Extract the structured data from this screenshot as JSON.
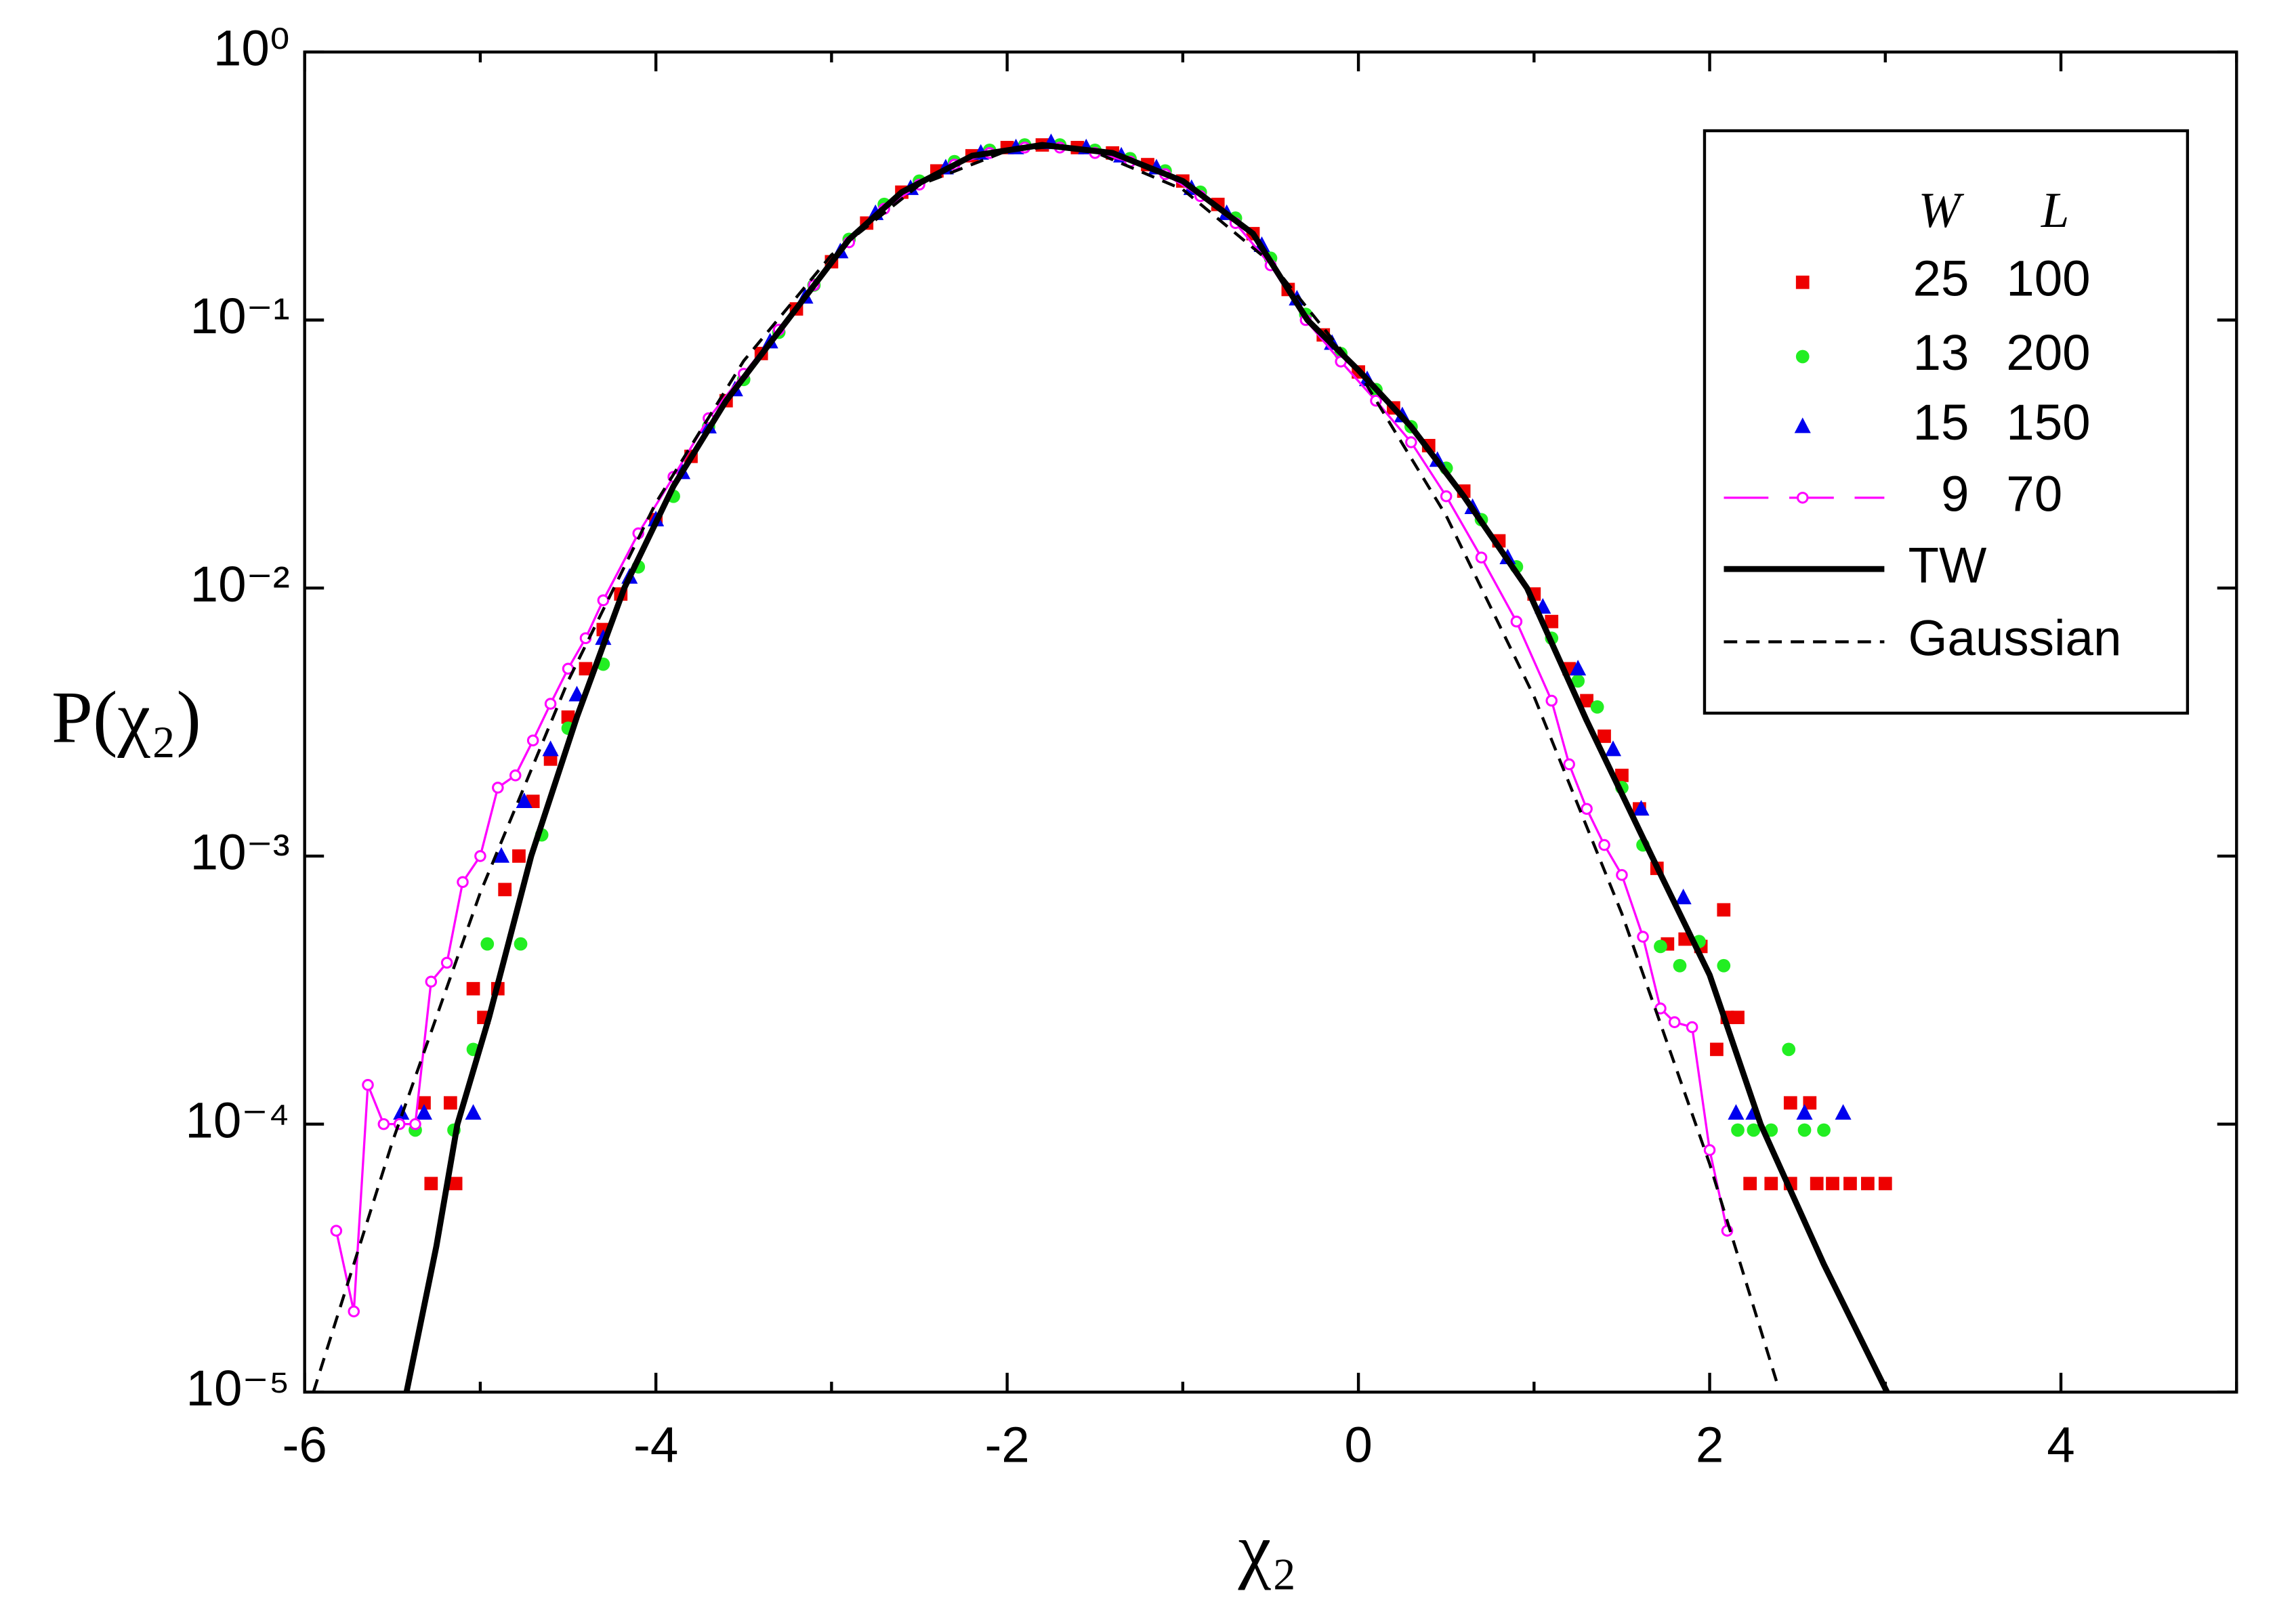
{
  "chart_data": {
    "type": "scatter",
    "x_label": "χ₂",
    "y_label": "P(χ₂)",
    "xlim": [
      -6,
      5
    ],
    "xticks": [
      -6,
      -4,
      -2,
      0,
      2,
      4
    ],
    "xminor": [
      -5,
      -3,
      -1,
      1,
      3,
      5
    ],
    "ylim": [
      1e-05,
      1
    ],
    "ylog": true,
    "yticks": [
      {
        "value": 1e-05,
        "label": "10⁻⁵"
      },
      {
        "value": 0.0001,
        "label": "10⁻⁴"
      },
      {
        "value": 0.001,
        "label": "10⁻³"
      },
      {
        "value": 0.01,
        "label": "10⁻²"
      },
      {
        "value": 0.1,
        "label": "10⁻¹"
      },
      {
        "value": 1,
        "label": "10⁰"
      }
    ],
    "legend_position": "upper right",
    "legend_header": [
      "W",
      "L"
    ],
    "series": [
      {
        "legend_label": [
          "25",
          "100"
        ],
        "color": "#ee0000",
        "marker": "square",
        "x": [
          -5.32,
          -5.28,
          -5.17,
          -5.14,
          -5.04,
          -4.98,
          -4.9,
          -4.86,
          -4.78,
          -4.7,
          -4.6,
          -4.5,
          -4.4,
          -4.3,
          -4.2,
          -4.0,
          -3.8,
          -3.6,
          -3.4,
          -3.2,
          -3.0,
          -2.8,
          -2.6,
          -2.4,
          -2.2,
          -2.0,
          -1.8,
          -1.6,
          -1.4,
          -1.2,
          -1.0,
          -0.8,
          -0.6,
          -0.4,
          -0.2,
          0.0,
          0.2,
          0.4,
          0.6,
          0.8,
          1.0,
          1.1,
          1.2,
          1.3,
          1.4,
          1.5,
          1.6,
          1.7,
          1.76,
          1.86,
          1.95,
          2.04,
          2.08,
          2.1,
          2.16,
          2.23,
          2.35,
          2.46,
          2.46,
          2.57,
          2.61,
          2.7,
          2.8,
          2.9,
          3.0
        ],
        "values": [
          0.00012,
          6e-05,
          0.00012,
          6e-05,
          0.00032,
          0.00025,
          0.00032,
          0.00075,
          0.001,
          0.0016,
          0.0023,
          0.0033,
          0.005,
          0.007,
          0.0095,
          0.018,
          0.031,
          0.05,
          0.075,
          0.11,
          0.165,
          0.23,
          0.3,
          0.36,
          0.41,
          0.44,
          0.45,
          0.44,
          0.42,
          0.38,
          0.33,
          0.27,
          0.21,
          0.13,
          0.088,
          0.064,
          0.047,
          0.034,
          0.023,
          0.015,
          0.0095,
          0.0075,
          0.005,
          0.0038,
          0.0028,
          0.002,
          0.0015,
          0.0009,
          0.00047,
          0.00049,
          0.00046,
          0.00019,
          0.00063,
          0.00025,
          0.00025,
          6e-05,
          6e-05,
          0.00012,
          6e-05,
          0.00012,
          6e-05,
          6e-05,
          6e-05,
          6e-05,
          6e-05
        ]
      },
      {
        "legend_label": [
          "13",
          "200"
        ],
        "color": "#22ee22",
        "marker": "circle",
        "x": [
          -5.37,
          -5.15,
          -5.04,
          -4.96,
          -4.77,
          -4.65,
          -4.5,
          -4.3,
          -4.1,
          -3.9,
          -3.7,
          -3.5,
          -3.3,
          -3.1,
          -2.9,
          -2.7,
          -2.5,
          -2.3,
          -2.1,
          -1.9,
          -1.7,
          -1.5,
          -1.3,
          -1.1,
          -0.9,
          -0.7,
          -0.5,
          -0.3,
          -0.1,
          0.1,
          0.3,
          0.5,
          0.7,
          0.9,
          1.1,
          1.25,
          1.36,
          1.5,
          1.62,
          1.72,
          1.83,
          1.94,
          2.08,
          2.16,
          2.25,
          2.35,
          2.45,
          2.54,
          2.65
        ],
        "values": [
          9.5e-05,
          9.5e-05,
          0.00019,
          0.00047,
          0.00047,
          0.0012,
          0.003,
          0.0052,
          0.012,
          0.022,
          0.04,
          0.06,
          0.09,
          0.135,
          0.2,
          0.27,
          0.33,
          0.39,
          0.43,
          0.45,
          0.45,
          0.43,
          0.4,
          0.36,
          0.3,
          0.24,
          0.17,
          0.105,
          0.075,
          0.055,
          0.04,
          0.028,
          0.018,
          0.012,
          0.0065,
          0.0045,
          0.0036,
          0.0018,
          0.0011,
          0.00046,
          0.00039,
          0.00048,
          0.00039,
          9.5e-05,
          9.5e-05,
          9.5e-05,
          0.00019,
          9.5e-05,
          9.5e-05
        ]
      },
      {
        "legend_label": [
          "15",
          "150"
        ],
        "color": "#0000ee",
        "marker": "triangle",
        "x": [
          -5.45,
          -5.32,
          -5.04,
          -4.88,
          -4.75,
          -4.6,
          -4.45,
          -4.3,
          -4.15,
          -4.0,
          -3.85,
          -3.7,
          -3.55,
          -3.35,
          -3.15,
          -2.95,
          -2.75,
          -2.55,
          -2.35,
          -2.15,
          -1.95,
          -1.75,
          -1.55,
          -1.35,
          -1.15,
          -0.95,
          -0.75,
          -0.55,
          -0.35,
          -0.15,
          0.05,
          0.25,
          0.45,
          0.65,
          0.85,
          1.05,
          1.25,
          1.45,
          1.61,
          1.85,
          2.15,
          2.25,
          2.54,
          2.76
        ],
        "values": [
          0.00011,
          0.00011,
          0.00011,
          0.001,
          0.0016,
          0.0025,
          0.004,
          0.0065,
          0.011,
          0.018,
          0.027,
          0.04,
          0.055,
          0.083,
          0.122,
          0.18,
          0.25,
          0.31,
          0.37,
          0.42,
          0.44,
          0.46,
          0.44,
          0.41,
          0.37,
          0.31,
          0.25,
          0.19,
          0.12,
          0.082,
          0.06,
          0.044,
          0.03,
          0.02,
          0.013,
          0.0085,
          0.005,
          0.0025,
          0.0015,
          0.0007,
          0.00011,
          0.00011,
          0.00011,
          0.00011
        ]
      },
      {
        "legend_label": [
          "9",
          "70"
        ],
        "color": "#ff00ff",
        "marker": "open-circle",
        "line": "thin",
        "x": [
          -5.82,
          -5.72,
          -5.64,
          -5.55,
          -5.46,
          -5.37,
          -5.28,
          -5.19,
          -5.1,
          -5.0,
          -4.9,
          -4.8,
          -4.7,
          -4.6,
          -4.5,
          -4.4,
          -4.3,
          -4.1,
          -3.9,
          -3.7,
          -3.5,
          -3.3,
          -3.1,
          -2.9,
          -2.7,
          -2.5,
          -2.3,
          -2.1,
          -1.9,
          -1.7,
          -1.5,
          -1.3,
          -1.1,
          -0.9,
          -0.7,
          -0.5,
          -0.3,
          -0.1,
          0.1,
          0.3,
          0.5,
          0.7,
          0.9,
          1.1,
          1.2,
          1.3,
          1.4,
          1.5,
          1.62,
          1.72,
          1.8,
          1.9,
          2.0,
          2.1
        ],
        "values": [
          4e-05,
          2e-05,
          0.00014,
          0.0001,
          0.0001,
          0.0001,
          0.00034,
          0.0004,
          0.0008,
          0.001,
          0.0018,
          0.002,
          0.0027,
          0.0037,
          0.005,
          0.0065,
          0.009,
          0.016,
          0.026,
          0.043,
          0.063,
          0.092,
          0.135,
          0.195,
          0.26,
          0.32,
          0.38,
          0.42,
          0.44,
          0.44,
          0.42,
          0.39,
          0.35,
          0.29,
          0.23,
          0.16,
          0.1,
          0.07,
          0.05,
          0.035,
          0.022,
          0.013,
          0.0075,
          0.0038,
          0.0022,
          0.0015,
          0.0011,
          0.00085,
          0.0005,
          0.00027,
          0.00024,
          0.00023,
          8e-05,
          4e-05
        ]
      },
      {
        "name": "TW",
        "color": "#000000",
        "line": "solid",
        "x": [
          -5.42,
          -5.25,
          -5.13,
          -4.95,
          -4.71,
          -4.45,
          -4.18,
          -3.9,
          -3.6,
          -3.25,
          -2.9,
          -2.6,
          -2.2,
          -1.8,
          -1.4,
          -1.0,
          -0.6,
          -0.29,
          0.0,
          0.3,
          0.6,
          0.96,
          1.3,
          1.67,
          2.0,
          2.29,
          2.65,
          3.01
        ],
        "values": [
          1e-05,
          3.5e-05,
          0.0001,
          0.00025,
          0.001,
          0.0033,
          0.01,
          0.024,
          0.05,
          0.1,
          0.2,
          0.3,
          0.41,
          0.45,
          0.42,
          0.33,
          0.21,
          0.1,
          0.065,
          0.04,
          0.022,
          0.01,
          0.0032,
          0.001,
          0.00036,
          0.0001,
          3e-05,
          1e-05
        ]
      },
      {
        "name": "Gaussian",
        "color": "#000000",
        "line": "dashed",
        "x": [
          -5.95,
          -5.5,
          -5.0,
          -4.5,
          -4.0,
          -3.5,
          -3.0,
          -2.5,
          -2.0,
          -1.77,
          -1.5,
          -1.0,
          -0.5,
          0,
          0.5,
          1.0,
          1.5,
          2.0,
          2.38
        ],
        "values": [
          1e-05,
          8.6e-05,
          0.00073,
          0.0045,
          0.0208,
          0.0704,
          0.175,
          0.319,
          0.428,
          0.442,
          0.423,
          0.307,
          0.164,
          0.0643,
          0.0186,
          0.00394,
          0.00061,
          7.1e-05,
          1.1e-05
        ]
      }
    ]
  }
}
